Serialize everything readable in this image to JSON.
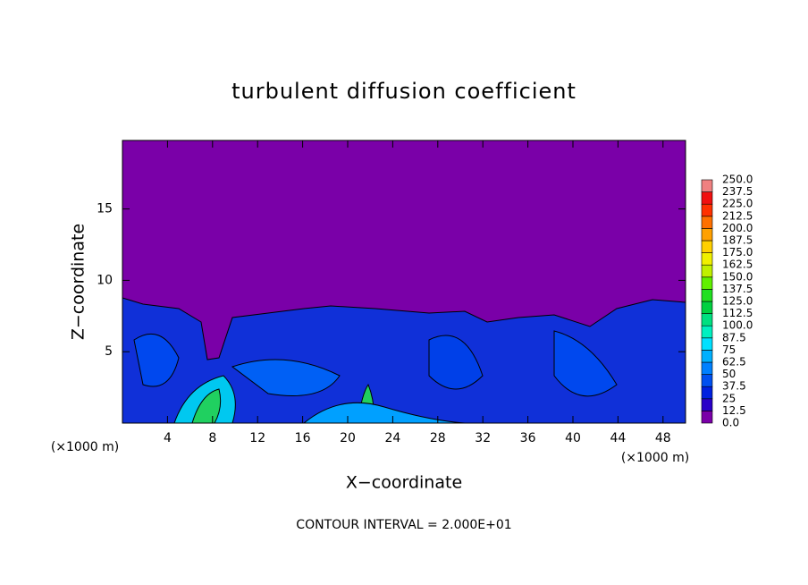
{
  "chart_data": {
    "type": "contour",
    "title": "turbulent diffusion coefficient",
    "xlabel": "X−coordinate",
    "ylabel": "Z−coordinate",
    "x_unit": "(×1000 m)",
    "x_unit_right": "(×1000 m)",
    "footnote": "CONTOUR INTERVAL = 2.000E+01",
    "xlim": [
      0,
      50
    ],
    "xticks": [
      4,
      8,
      12,
      16,
      20,
      24,
      28,
      32,
      36,
      40,
      44,
      48
    ],
    "ylim": [
      0,
      19.8
    ],
    "yticks": [
      5,
      10,
      15
    ],
    "colorbar": {
      "levels": [
        {
          "value": 0,
          "label": "0.0"
        },
        12.5,
        25,
        37.5,
        50,
        62.5,
        75,
        87.5,
        {
          "value": 100,
          "label": "100.0"
        },
        112.5,
        {
          "value": 125,
          "label": "125.0"
        },
        137.5,
        {
          "value": 150,
          "label": "150.0"
        },
        162.5,
        {
          "value": 175,
          "label": "175.0"
        },
        187.5,
        {
          "value": 200,
          "label": "200.0"
        },
        212.5,
        {
          "value": 225,
          "label": "225.0"
        },
        237.5,
        {
          "value": 250,
          "label": "250.0"
        }
      ],
      "colors": [
        "#7a00a8",
        "#2a00c8",
        "#0020e0",
        "#0050f0",
        "#0080ff",
        "#00b0ff",
        "#00e0ff",
        "#00f0c0",
        "#00e080",
        "#00d040",
        "#20e020",
        "#60f000",
        "#c0f000",
        "#f0f000",
        "#ffd000",
        "#ffa000",
        "#ff7000",
        "#ff3000",
        "#f01010",
        "#f08080"
      ]
    }
  }
}
